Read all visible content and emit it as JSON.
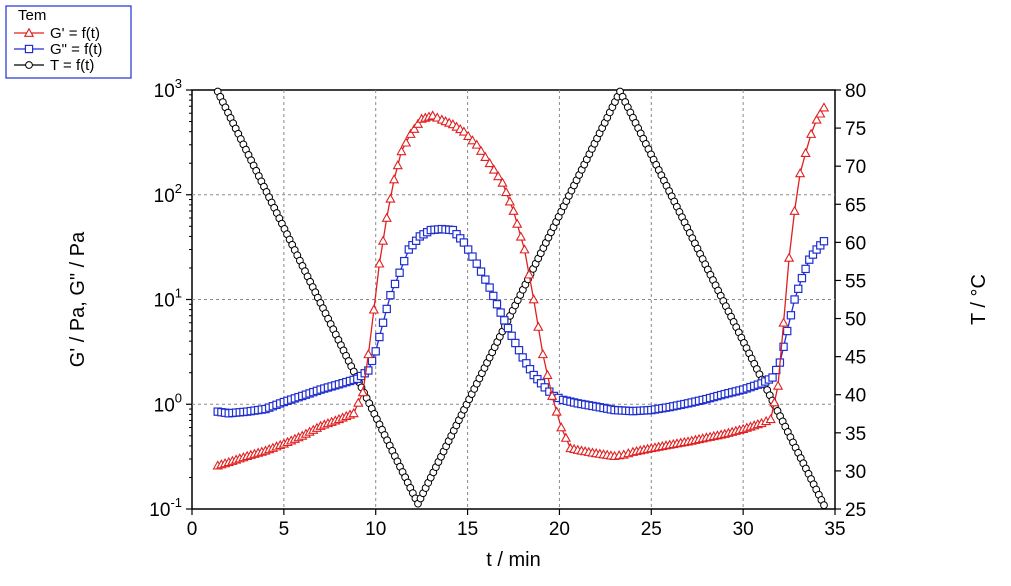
{
  "chart_data": {
    "type": "line",
    "title": "",
    "xlabel": "t / min",
    "ylabel": "G' / Pa, G\" / Pa",
    "y2label": "T / °C",
    "xlim": [
      0,
      35
    ],
    "ylim": [
      0.1,
      1000
    ],
    "y2lim": [
      25,
      80
    ],
    "yscale": "log",
    "grid": true,
    "legend": {
      "title": "Tem",
      "placement": "top-left"
    },
    "x_ticks": [
      "0",
      "5",
      "10",
      "15",
      "20",
      "25",
      "30",
      "35"
    ],
    "y_ticks": [
      {
        "base": "10",
        "exp": "-1"
      },
      {
        "base": "10",
        "exp": "0"
      },
      {
        "base": "10",
        "exp": "1"
      },
      {
        "base": "10",
        "exp": "2"
      },
      {
        "base": "10",
        "exp": "3"
      }
    ],
    "y2_ticks": [
      "25",
      "30",
      "35",
      "40",
      "45",
      "50",
      "55",
      "60",
      "65",
      "70",
      "75",
      "80"
    ],
    "series": [
      {
        "name": "G' = f(t)",
        "axis": "left",
        "color": "#e02020",
        "marker": "triangle",
        "x": [
          1.4,
          2.0,
          3.0,
          4.0,
          5.0,
          6.0,
          7.0,
          8.0,
          8.8,
          9.3,
          9.6,
          9.9,
          10.2,
          10.6,
          11.0,
          11.4,
          11.9,
          12.5,
          13.1,
          13.6,
          14.2,
          14.8,
          15.5,
          16.2,
          16.9,
          17.5,
          18.1,
          18.6,
          19.1,
          19.6,
          20.1,
          20.6,
          21.2,
          22.0,
          23.0,
          23.5,
          24.0,
          25.0,
          26.0,
          27.0,
          28.0,
          29.0,
          30.0,
          31.0,
          31.5,
          31.9,
          32.2,
          32.5,
          32.8,
          33.1,
          33.4,
          33.7,
          34.0,
          34.4
        ],
        "y": [
          0.26,
          0.28,
          0.32,
          0.36,
          0.42,
          0.5,
          0.62,
          0.72,
          0.82,
          1.3,
          3.0,
          8.0,
          22,
          60,
          140,
          260,
          380,
          530,
          570,
          520,
          470,
          400,
          300,
          200,
          130,
          70,
          30,
          10,
          3.0,
          1.2,
          0.6,
          0.38,
          0.36,
          0.34,
          0.32,
          0.33,
          0.35,
          0.38,
          0.41,
          0.44,
          0.48,
          0.52,
          0.58,
          0.66,
          0.72,
          1.5,
          6.0,
          25,
          70,
          160,
          250,
          380,
          520,
          680
        ]
      },
      {
        "name": "G\" = f(t)",
        "axis": "left",
        "color": "#1f2fd0",
        "marker": "square",
        "x": [
          1.4,
          2.0,
          3.0,
          4.0,
          5.0,
          6.0,
          7.0,
          8.0,
          9.0,
          9.6,
          10.0,
          10.4,
          10.8,
          11.3,
          11.8,
          12.4,
          13.0,
          13.6,
          14.2,
          14.8,
          15.5,
          16.2,
          16.8,
          17.4,
          18.0,
          18.6,
          19.2,
          19.7,
          20.2,
          21.0,
          22.0,
          23.0,
          24.0,
          25.0,
          26.0,
          27.0,
          28.0,
          29.0,
          30.0,
          31.0,
          31.6,
          32.0,
          32.4,
          32.8,
          33.2,
          33.6,
          34.0,
          34.4
        ],
        "y": [
          0.85,
          0.82,
          0.85,
          0.9,
          1.05,
          1.2,
          1.38,
          1.55,
          1.75,
          2.1,
          3.2,
          6.0,
          11.0,
          18.0,
          30.0,
          40.0,
          46.0,
          47.0,
          46.0,
          35.0,
          22.0,
          13.0,
          7.5,
          4.5,
          2.8,
          1.9,
          1.45,
          1.2,
          1.1,
          1.02,
          0.95,
          0.88,
          0.86,
          0.88,
          0.94,
          1.02,
          1.12,
          1.25,
          1.38,
          1.58,
          1.8,
          2.5,
          5.0,
          10.0,
          16.0,
          24.0,
          30.0,
          36.0
        ]
      },
      {
        "name": "T = f(t)",
        "axis": "right",
        "color": "#000000",
        "marker": "circle",
        "x": [
          1.4,
          12.3,
          23.3,
          34.4
        ],
        "y": [
          79.8,
          25.7,
          79.8,
          25.5
        ]
      }
    ]
  }
}
